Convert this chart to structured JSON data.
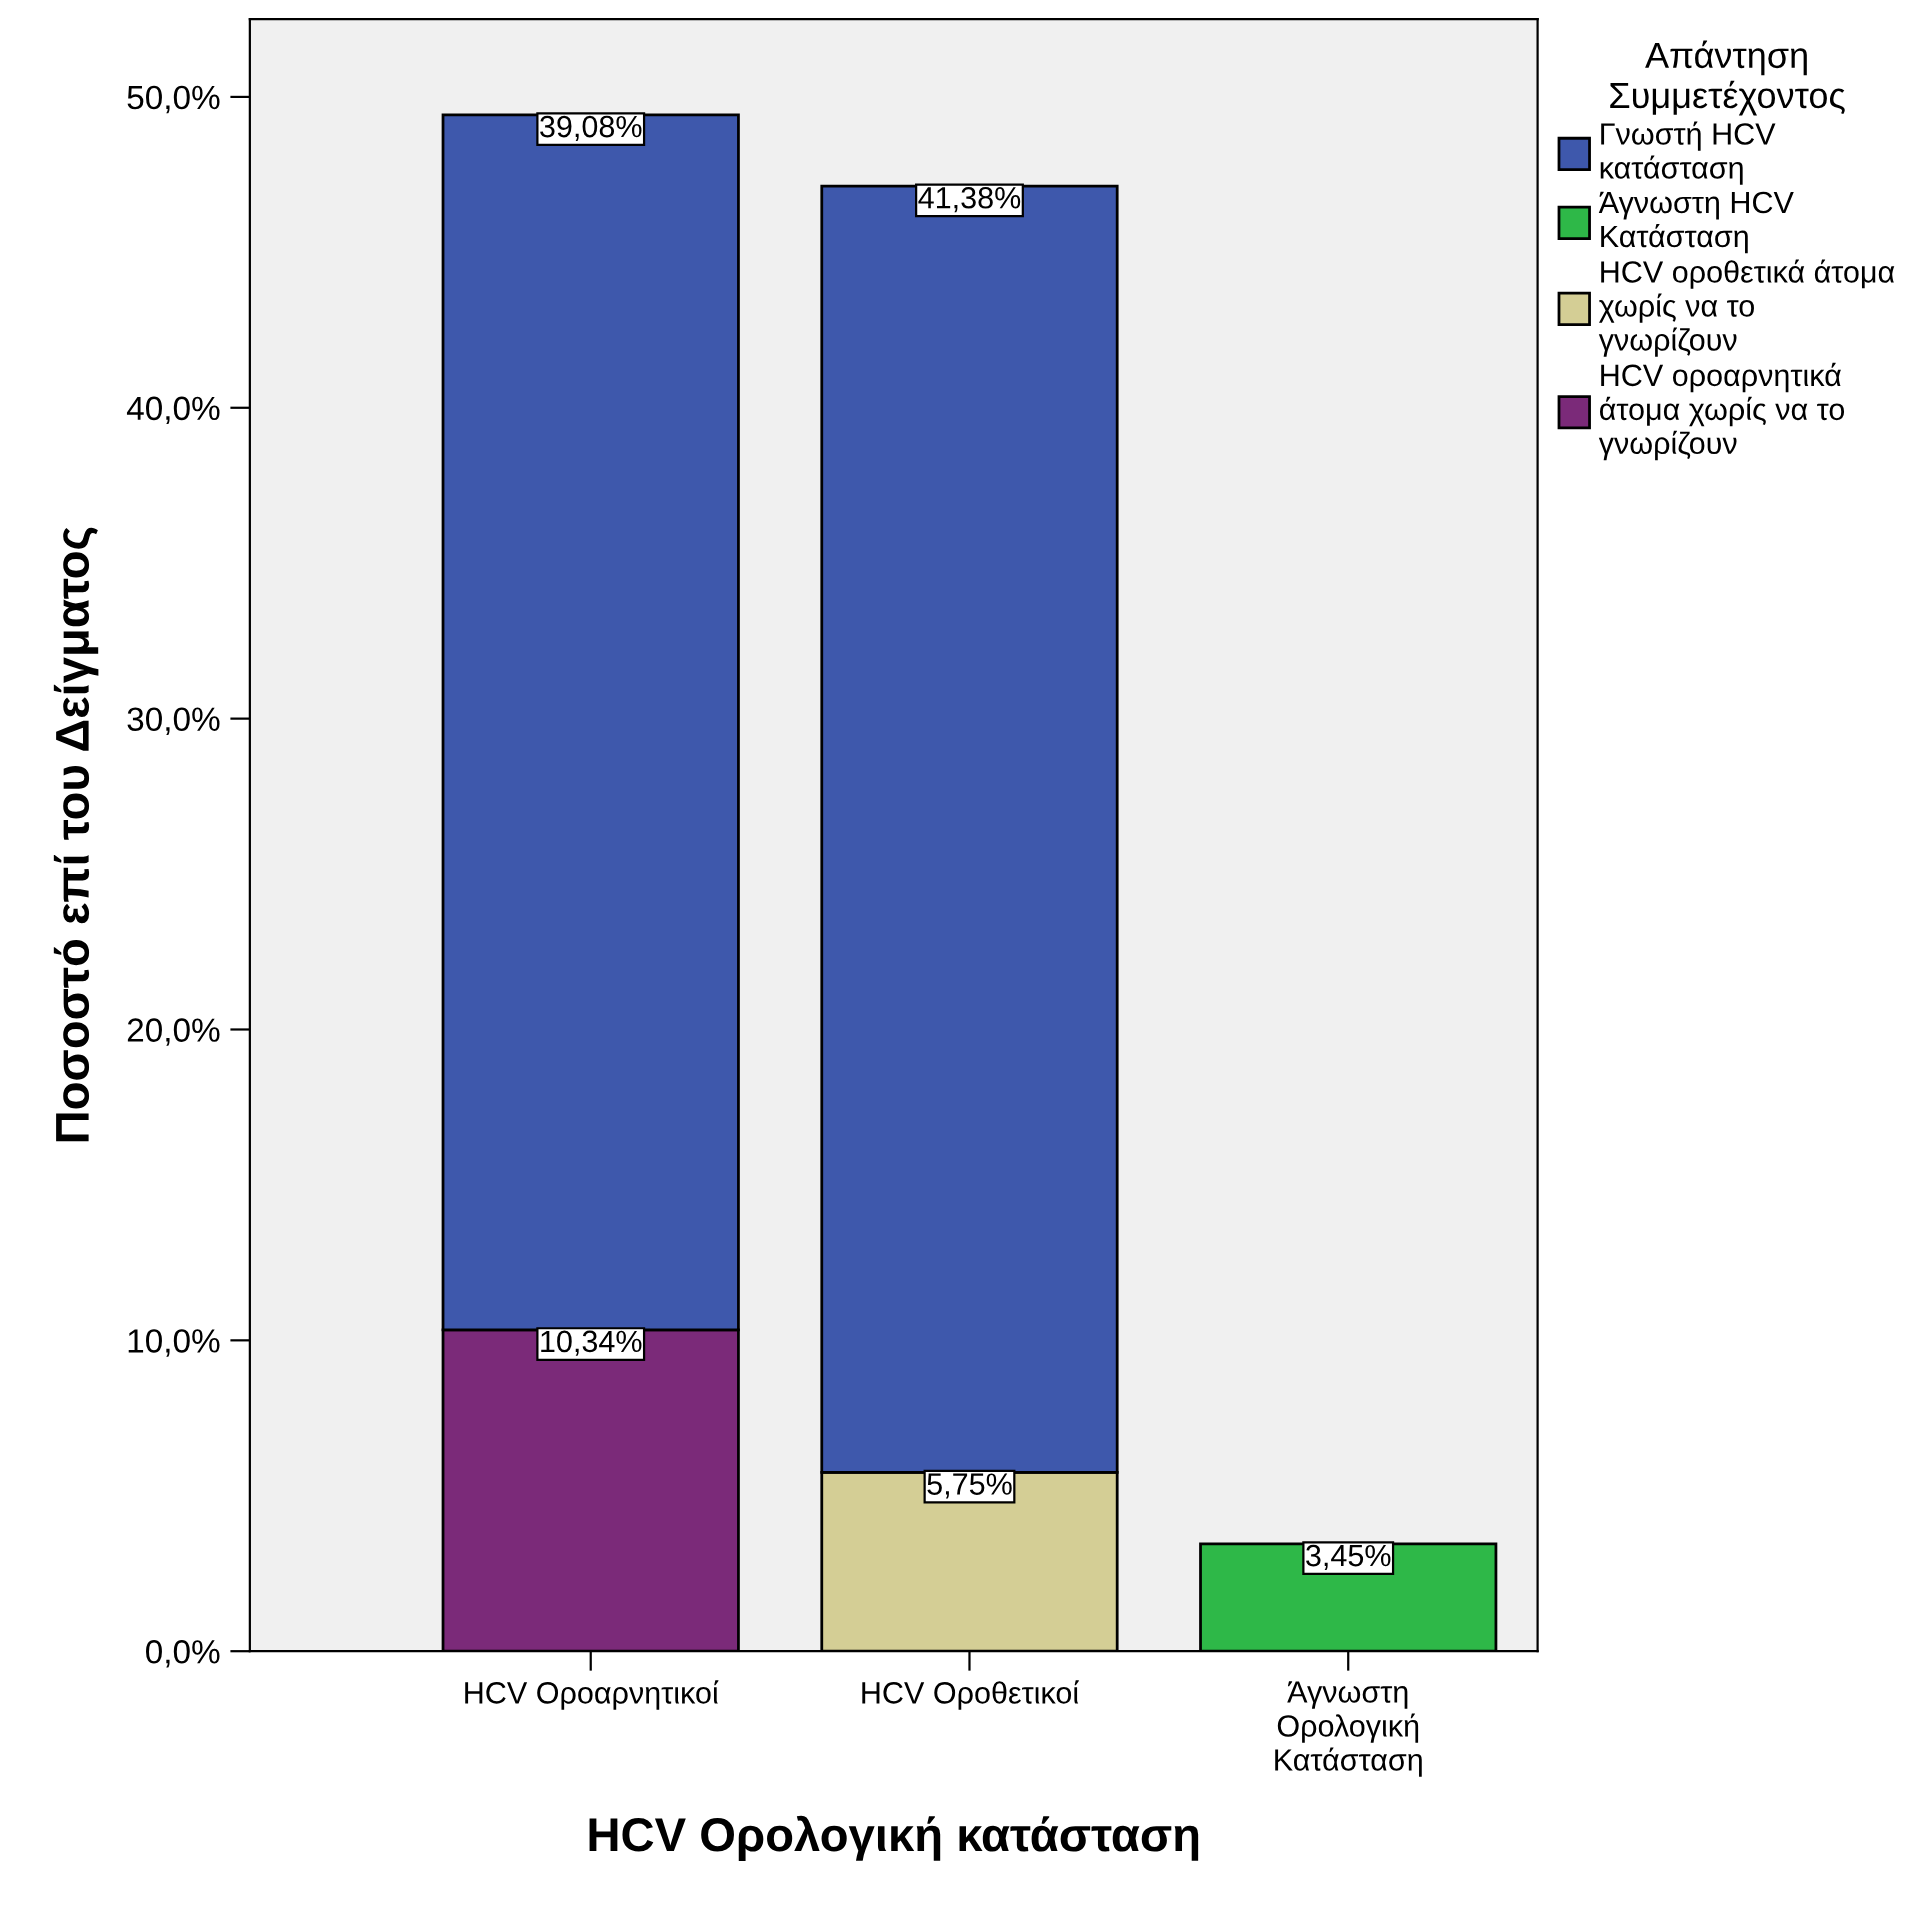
{
  "chart_data": {
    "type": "bar",
    "stacked": true,
    "xlabel": "HCV Ορολογική κατάσταση",
    "ylabel": "Ποσοστό επί του Δείγματος",
    "legend_title": "Απάντηση\nΣυμμετέχοντος",
    "categories": [
      "HCV Οροαρνητικοί",
      "HCV Οροθετικοί",
      "Άγνωστη\nΟρολογική\nΚατάσταση"
    ],
    "series": [
      {
        "name": "HCV οροαρνητικά\nάτομα χωρίς να το\nγνωρίζουν",
        "color": "#7b2a79",
        "values": [
          10.34,
          null,
          null
        ],
        "value_labels": [
          "10,34%",
          null,
          null
        ]
      },
      {
        "name": "HCV οροθετικά άτομα\nχωρίς να το\nγνωρίζουν",
        "color": "#d4ce95",
        "values": [
          null,
          5.75,
          null
        ],
        "value_labels": [
          null,
          "5,75%",
          null
        ]
      },
      {
        "name": "Άγνωστη HCV\nΚατάσταση",
        "color": "#2eb848",
        "values": [
          null,
          null,
          3.45
        ],
        "value_labels": [
          null,
          null,
          "3,45%"
        ]
      },
      {
        "name": "Γνωστή HCV\nκατάσταση",
        "color": "#3e58ac",
        "values": [
          39.08,
          41.38,
          null
        ],
        "value_labels": [
          "39,08%",
          "41,38%",
          null
        ]
      }
    ],
    "ylim": [
      0,
      52.5
    ],
    "yticks": [
      {
        "value": 0,
        "label": "0,0%"
      },
      {
        "value": 10,
        "label": "10,0%"
      },
      {
        "value": 20,
        "label": "20,0%"
      },
      {
        "value": 30,
        "label": "30,0%"
      },
      {
        "value": 40,
        "label": "40,0%"
      },
      {
        "value": 50,
        "label": "50,0%"
      }
    ],
    "grid": false,
    "legend": "right"
  }
}
